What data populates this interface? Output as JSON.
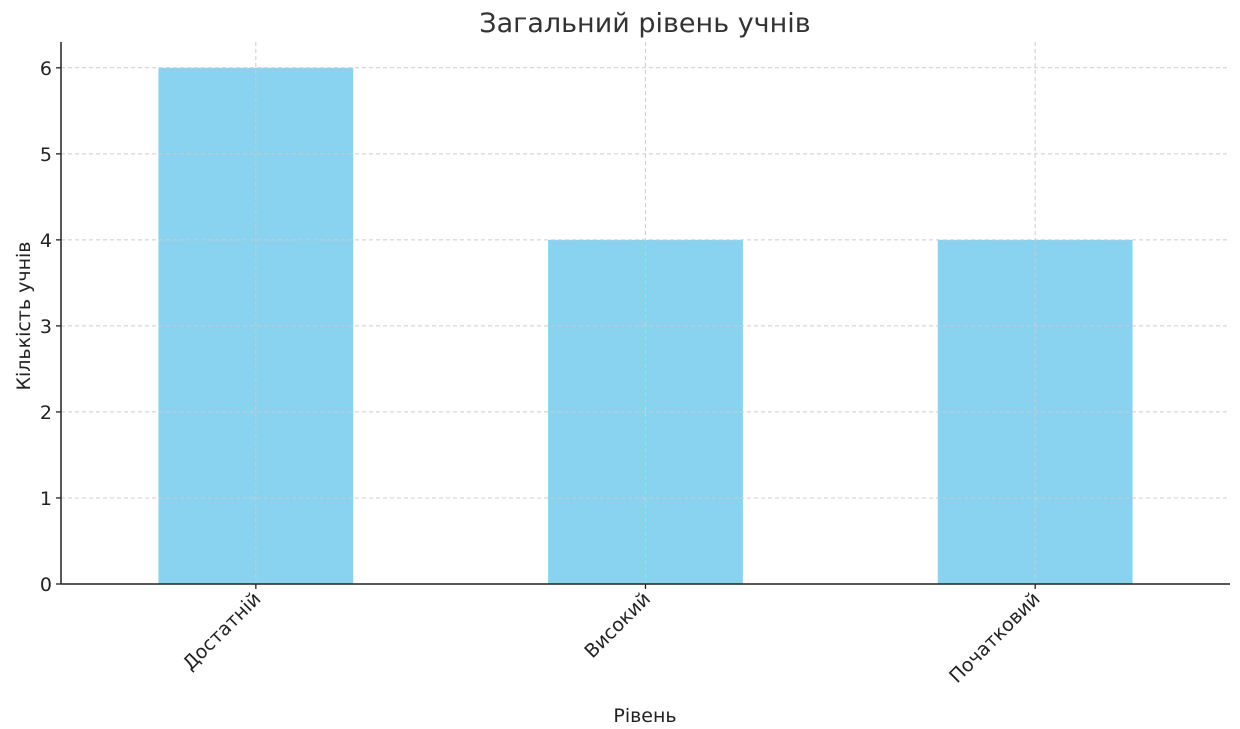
{
  "chart_data": {
    "type": "bar",
    "title": "Загальний рівень учнів",
    "xlabel": "Рівень",
    "ylabel": "Кількість учнів",
    "categories": [
      "Достатній",
      "Високий",
      "Початковий"
    ],
    "values": [
      6,
      4,
      4
    ],
    "ylim": [
      0,
      6.3
    ],
    "yticks": [
      0,
      1,
      2,
      3,
      4,
      5,
      6
    ],
    "grid": true,
    "bar_color": "#89d3f0",
    "grid_color": "#cccccc",
    "axis_color": "#222222"
  }
}
